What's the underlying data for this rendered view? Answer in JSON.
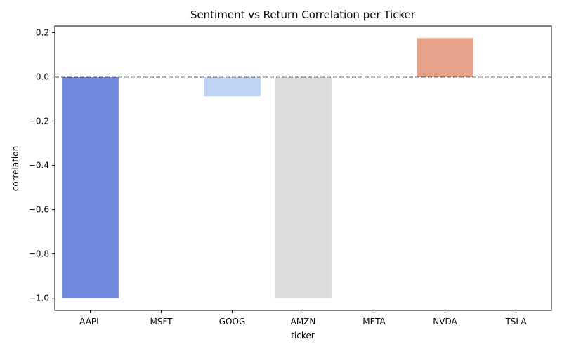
{
  "chart_data": {
    "type": "bar",
    "title": "Sentiment vs Return Correlation per Ticker",
    "xlabel": "ticker",
    "ylabel": "correlation",
    "categories": [
      "AAPL",
      "MSFT",
      "GOOG",
      "AMZN",
      "META",
      "NVDA",
      "TSLA"
    ],
    "values": [
      -1.0,
      null,
      -0.088,
      -1.0,
      null,
      0.175,
      null
    ],
    "colors": [
      "#7089dd",
      "#ffffff",
      "#c0d3f5",
      "#dcdcdc",
      "#ffffff",
      "#e7a189",
      "#ffffff"
    ],
    "ylim": [
      -1.055,
      0.23
    ],
    "yticks": [
      0.2,
      0.0,
      -0.2,
      -0.4,
      -0.6,
      -0.8,
      -1.0
    ],
    "ytick_labels": [
      "0.2",
      "0.0",
      "−0.2",
      "−0.4",
      "−0.6",
      "−0.8",
      "−1.0"
    ],
    "reference_line": {
      "y": 0,
      "style": "dashed",
      "color": "#000000"
    },
    "grid": false
  }
}
